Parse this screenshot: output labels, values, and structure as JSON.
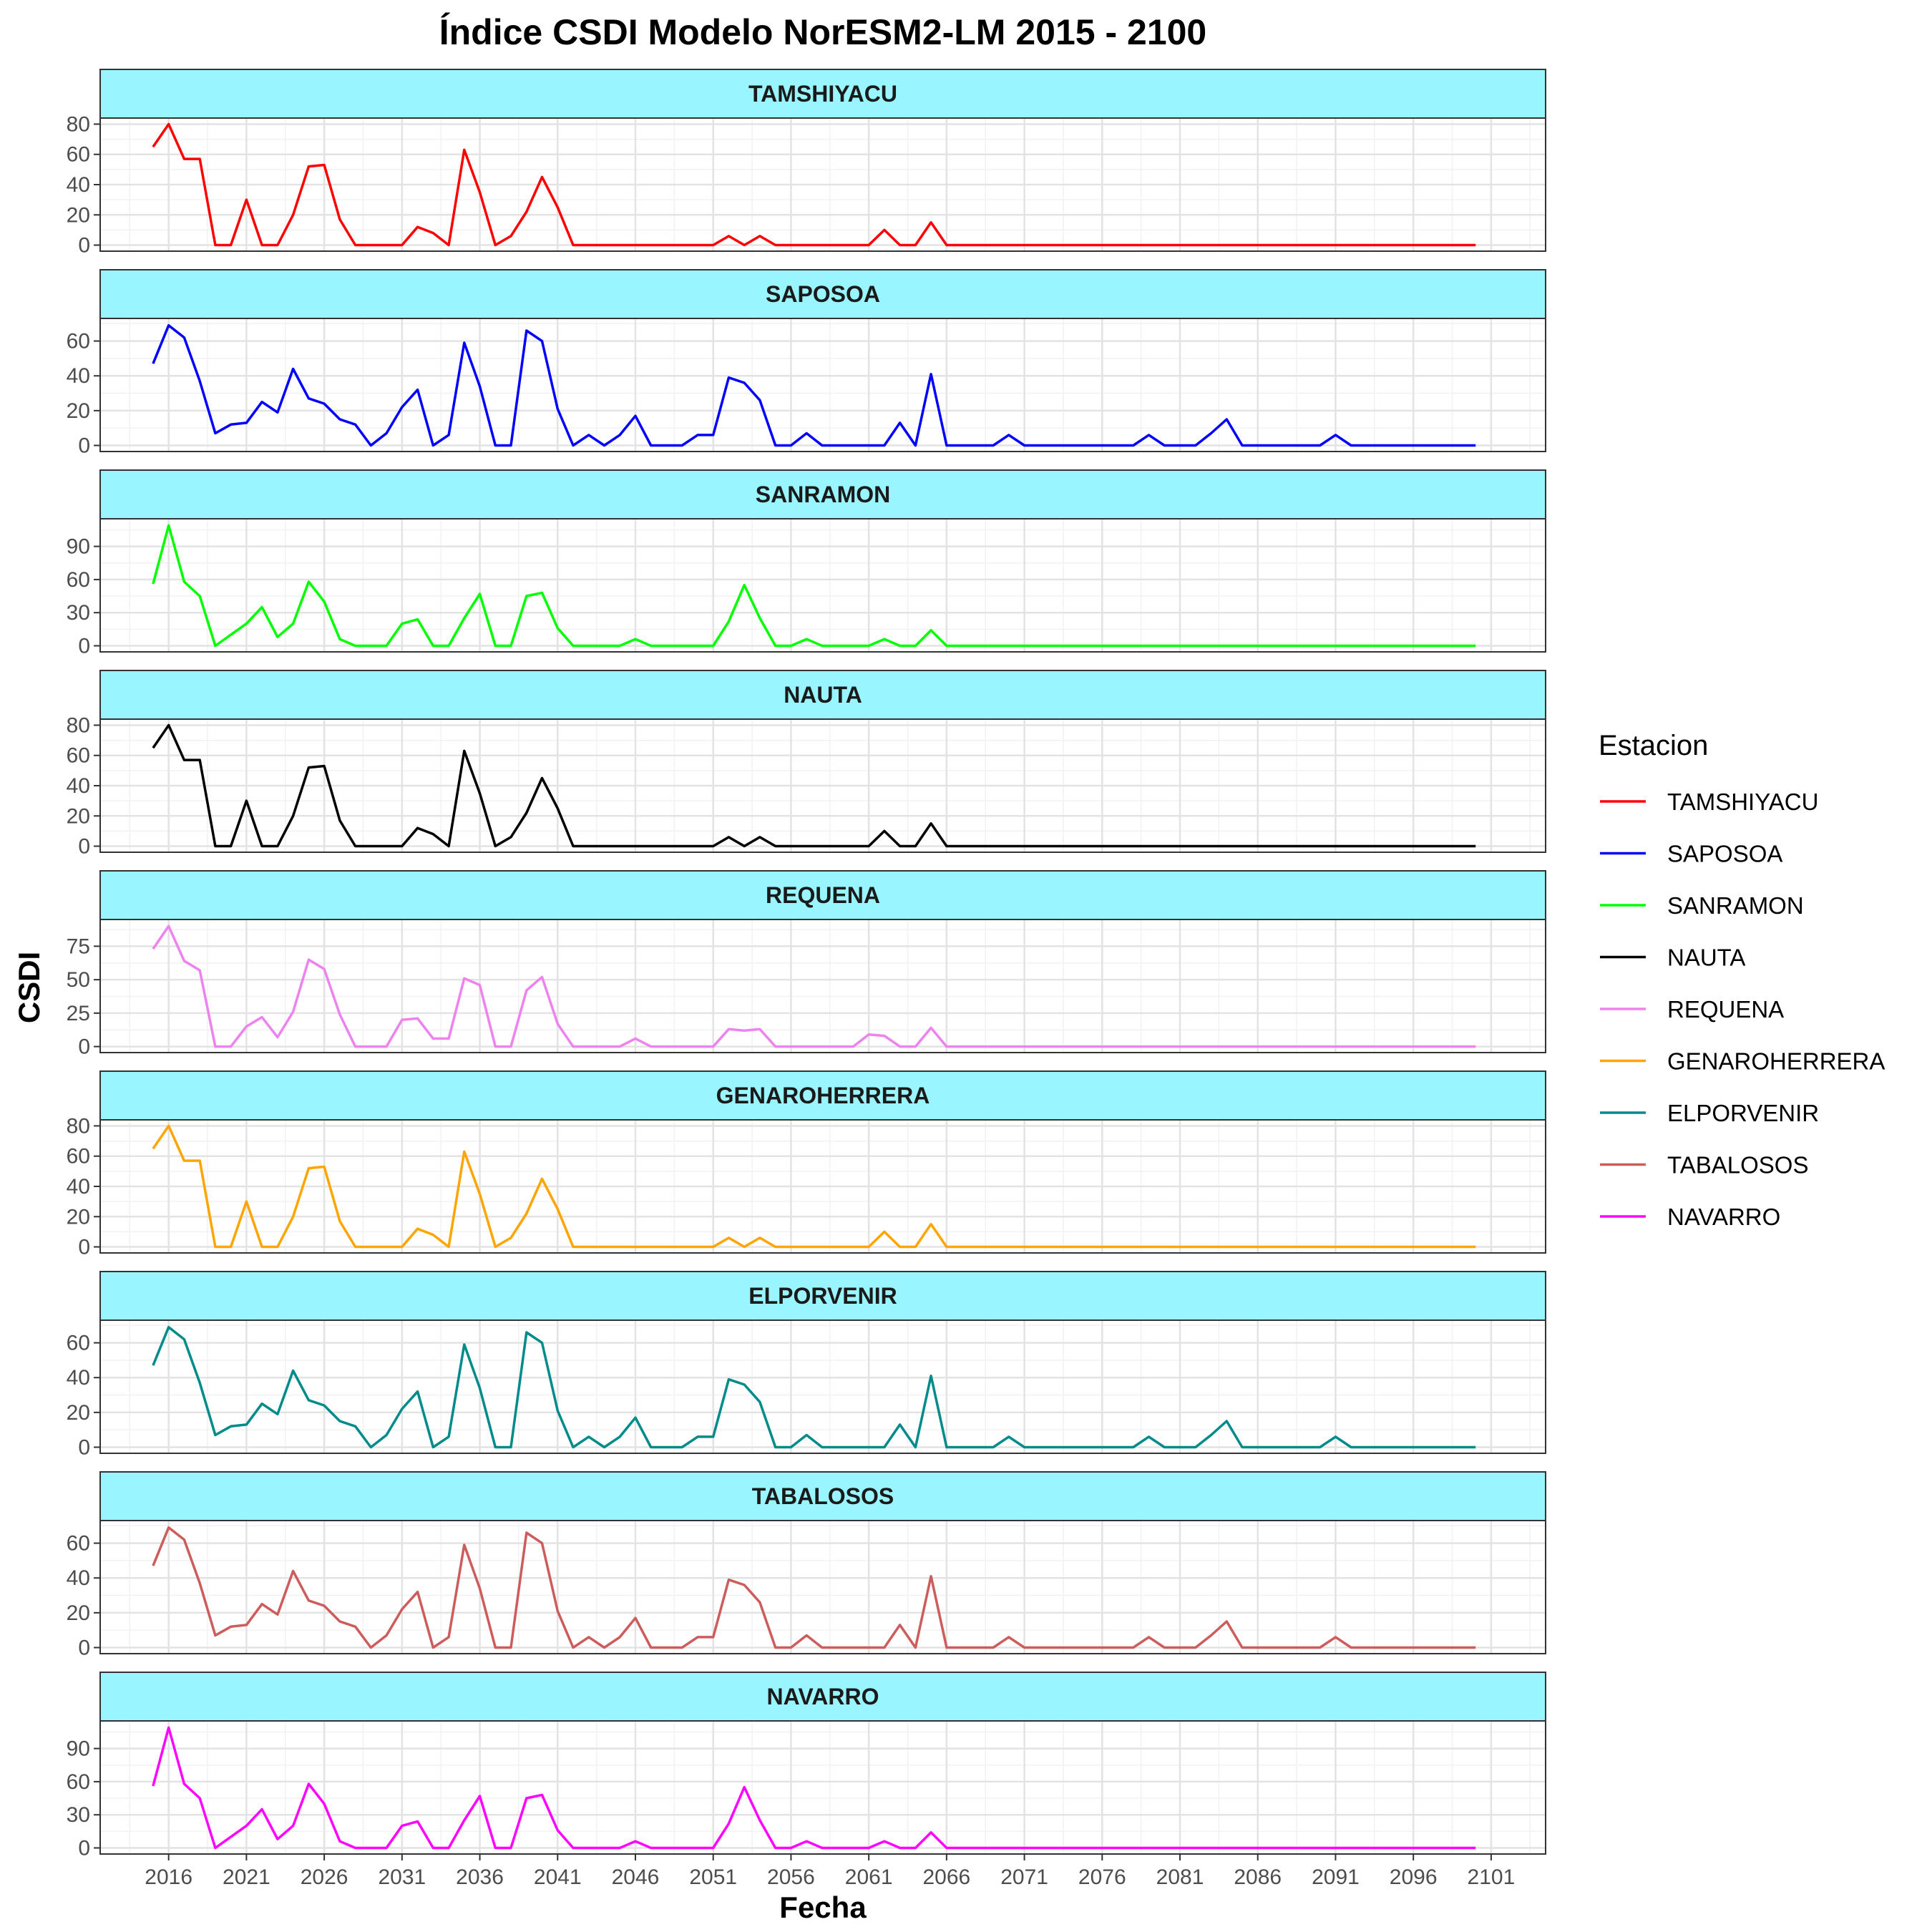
{
  "chart_data": {
    "type": "line",
    "title": "Índice CSDI Modelo NorESM2-LM 2015 - 2100",
    "xlabel": "Fecha",
    "ylabel": "CSDI",
    "x_ticks": [
      "2016",
      "2021",
      "2026",
      "2031",
      "2036",
      "2041",
      "2046",
      "2051",
      "2056",
      "2061",
      "2066",
      "2071",
      "2076",
      "2081",
      "2086",
      "2091",
      "2096",
      "2101"
    ],
    "xlim": [
      2011.6,
      2104.5
    ],
    "grid": true,
    "facet_strip_color": "#99F5FF",
    "legend": {
      "title": "Estacion",
      "position": "right"
    },
    "x": [
      2015,
      2016,
      2017,
      2018,
      2019,
      2020,
      2021,
      2022,
      2023,
      2024,
      2025,
      2026,
      2027,
      2028,
      2029,
      2030,
      2031,
      2032,
      2033,
      2034,
      2035,
      2036,
      2037,
      2038,
      2039,
      2040,
      2041,
      2042,
      2043,
      2044,
      2045,
      2046,
      2047,
      2048,
      2049,
      2050,
      2051,
      2052,
      2053,
      2054,
      2055,
      2056,
      2057,
      2058,
      2059,
      2060,
      2061,
      2062,
      2063,
      2064,
      2065,
      2066,
      2067,
      2068,
      2069,
      2070,
      2071,
      2072,
      2073,
      2074,
      2075,
      2076,
      2077,
      2078,
      2079,
      2080,
      2081,
      2082,
      2083,
      2084,
      2085,
      2086,
      2087,
      2088,
      2089,
      2090,
      2091,
      2092,
      2093,
      2094,
      2095,
      2096,
      2097,
      2098,
      2099,
      2100
    ],
    "series": [
      {
        "name": "TAMSHIYACU",
        "color": "#FF0000",
        "yticks": [
          0,
          20,
          40,
          60,
          80
        ],
        "ylim": [
          -4,
          84
        ],
        "values": [
          65,
          80,
          57,
          57,
          0,
          0,
          30,
          0,
          0,
          20,
          52,
          53,
          17,
          0,
          0,
          0,
          0,
          12,
          8,
          0,
          63,
          35,
          0,
          6,
          22,
          45,
          25,
          0,
          0,
          0,
          0,
          0,
          0,
          0,
          0,
          0,
          0,
          6,
          0,
          6,
          0,
          0,
          0,
          0,
          0,
          0,
          0,
          10,
          0,
          0,
          15,
          0,
          0,
          0,
          0,
          0,
          0,
          0,
          0,
          0,
          0,
          0,
          0,
          0,
          0,
          0,
          0,
          0,
          0,
          0,
          0,
          0,
          0,
          0,
          0,
          0,
          0,
          0,
          0,
          0,
          0,
          0,
          0,
          0,
          0,
          0
        ]
      },
      {
        "name": "SAPOSOA",
        "color": "#0000FF",
        "yticks": [
          0,
          20,
          40,
          60
        ],
        "ylim": [
          -3.5,
          73
        ],
        "values": [
          47,
          69,
          62,
          37,
          7,
          12,
          13,
          25,
          19,
          44,
          27,
          24,
          15,
          12,
          0,
          7,
          22,
          32,
          0,
          6,
          59,
          34,
          0,
          0,
          66,
          60,
          21,
          0,
          6,
          0,
          6,
          17,
          0,
          0,
          0,
          6,
          6,
          39,
          36,
          26,
          0,
          0,
          7,
          0,
          0,
          0,
          0,
          0,
          13,
          0,
          41,
          0,
          0,
          0,
          0,
          6,
          0,
          0,
          0,
          0,
          0,
          0,
          0,
          0,
          6,
          0,
          0,
          0,
          7,
          15,
          0,
          0,
          0,
          0,
          0,
          0,
          6,
          0,
          0,
          0,
          0,
          0,
          0,
          0,
          0,
          0
        ]
      },
      {
        "name": "SANRAMON",
        "color": "#00FF00",
        "yticks": [
          0,
          30,
          60,
          90
        ],
        "ylim": [
          -5.5,
          115
        ],
        "values": [
          56,
          109,
          58,
          45,
          0,
          10,
          20,
          35,
          8,
          20,
          58,
          40,
          6,
          0,
          0,
          0,
          20,
          24,
          0,
          0,
          25,
          47,
          0,
          0,
          45,
          48,
          16,
          0,
          0,
          0,
          0,
          6,
          0,
          0,
          0,
          0,
          0,
          22,
          55,
          25,
          0,
          0,
          6,
          0,
          0,
          0,
          0,
          6,
          0,
          0,
          14,
          0,
          0,
          0,
          0,
          0,
          0,
          0,
          0,
          0,
          0,
          0,
          0,
          0,
          0,
          0,
          0,
          0,
          0,
          0,
          0,
          0,
          0,
          0,
          0,
          0,
          0,
          0,
          0,
          0,
          0,
          0,
          0,
          0,
          0,
          0
        ]
      },
      {
        "name": "NAUTA",
        "color": "#000000",
        "yticks": [
          0,
          20,
          40,
          60,
          80
        ],
        "ylim": [
          -4,
          84
        ],
        "values": [
          65,
          80,
          57,
          57,
          0,
          0,
          30,
          0,
          0,
          20,
          52,
          53,
          17,
          0,
          0,
          0,
          0,
          12,
          8,
          0,
          63,
          35,
          0,
          6,
          22,
          45,
          25,
          0,
          0,
          0,
          0,
          0,
          0,
          0,
          0,
          0,
          0,
          6,
          0,
          6,
          0,
          0,
          0,
          0,
          0,
          0,
          0,
          10,
          0,
          0,
          15,
          0,
          0,
          0,
          0,
          0,
          0,
          0,
          0,
          0,
          0,
          0,
          0,
          0,
          0,
          0,
          0,
          0,
          0,
          0,
          0,
          0,
          0,
          0,
          0,
          0,
          0,
          0,
          0,
          0,
          0,
          0,
          0,
          0,
          0,
          0
        ]
      },
      {
        "name": "REQUENA",
        "color": "#EE82EE",
        "yticks": [
          0,
          25,
          50,
          75
        ],
        "ylim": [
          -4.5,
          95
        ],
        "values": [
          73,
          90,
          64,
          57,
          0,
          0,
          15,
          22,
          7,
          26,
          65,
          58,
          24,
          0,
          0,
          0,
          20,
          21,
          6,
          6,
          51,
          46,
          0,
          0,
          42,
          52,
          17,
          0,
          0,
          0,
          0,
          6,
          0,
          0,
          0,
          0,
          0,
          13,
          12,
          13,
          0,
          0,
          0,
          0,
          0,
          0,
          9,
          8,
          0,
          0,
          14,
          0,
          0,
          0,
          0,
          0,
          0,
          0,
          0,
          0,
          0,
          0,
          0,
          0,
          0,
          0,
          0,
          0,
          0,
          0,
          0,
          0,
          0,
          0,
          0,
          0,
          0,
          0,
          0,
          0,
          0,
          0,
          0,
          0,
          0,
          0
        ]
      },
      {
        "name": "GENAROHERRERA",
        "color": "#FFA500",
        "yticks": [
          0,
          20,
          40,
          60,
          80
        ],
        "ylim": [
          -4,
          84
        ],
        "values": [
          65,
          80,
          57,
          57,
          0,
          0,
          30,
          0,
          0,
          20,
          52,
          53,
          17,
          0,
          0,
          0,
          0,
          12,
          8,
          0,
          63,
          35,
          0,
          6,
          22,
          45,
          25,
          0,
          0,
          0,
          0,
          0,
          0,
          0,
          0,
          0,
          0,
          6,
          0,
          6,
          0,
          0,
          0,
          0,
          0,
          0,
          0,
          10,
          0,
          0,
          15,
          0,
          0,
          0,
          0,
          0,
          0,
          0,
          0,
          0,
          0,
          0,
          0,
          0,
          0,
          0,
          0,
          0,
          0,
          0,
          0,
          0,
          0,
          0,
          0,
          0,
          0,
          0,
          0,
          0,
          0,
          0,
          0,
          0,
          0,
          0
        ]
      },
      {
        "name": "ELPORVENIR",
        "color": "#008B8B",
        "yticks": [
          0,
          20,
          40,
          60
        ],
        "ylim": [
          -3.5,
          73
        ],
        "values": [
          47,
          69,
          62,
          37,
          7,
          12,
          13,
          25,
          19,
          44,
          27,
          24,
          15,
          12,
          0,
          7,
          22,
          32,
          0,
          6,
          59,
          34,
          0,
          0,
          66,
          60,
          21,
          0,
          6,
          0,
          6,
          17,
          0,
          0,
          0,
          6,
          6,
          39,
          36,
          26,
          0,
          0,
          7,
          0,
          0,
          0,
          0,
          0,
          13,
          0,
          41,
          0,
          0,
          0,
          0,
          6,
          0,
          0,
          0,
          0,
          0,
          0,
          0,
          0,
          6,
          0,
          0,
          0,
          7,
          15,
          0,
          0,
          0,
          0,
          0,
          0,
          6,
          0,
          0,
          0,
          0,
          0,
          0,
          0,
          0,
          0
        ]
      },
      {
        "name": "TABALOSOS",
        "color": "#CD5C5C",
        "yticks": [
          0,
          20,
          40,
          60
        ],
        "ylim": [
          -3.5,
          73
        ],
        "values": [
          47,
          69,
          62,
          37,
          7,
          12,
          13,
          25,
          19,
          44,
          27,
          24,
          15,
          12,
          0,
          7,
          22,
          32,
          0,
          6,
          59,
          34,
          0,
          0,
          66,
          60,
          21,
          0,
          6,
          0,
          6,
          17,
          0,
          0,
          0,
          6,
          6,
          39,
          36,
          26,
          0,
          0,
          7,
          0,
          0,
          0,
          0,
          0,
          13,
          0,
          41,
          0,
          0,
          0,
          0,
          6,
          0,
          0,
          0,
          0,
          0,
          0,
          0,
          0,
          6,
          0,
          0,
          0,
          7,
          15,
          0,
          0,
          0,
          0,
          0,
          0,
          6,
          0,
          0,
          0,
          0,
          0,
          0,
          0,
          0,
          0
        ]
      },
      {
        "name": "NAVARRO",
        "color": "#FF00FF",
        "yticks": [
          0,
          30,
          60,
          90
        ],
        "ylim": [
          -5.5,
          115
        ],
        "values": [
          56,
          109,
          58,
          45,
          0,
          10,
          20,
          35,
          8,
          20,
          58,
          40,
          6,
          0,
          0,
          0,
          20,
          24,
          0,
          0,
          25,
          47,
          0,
          0,
          45,
          48,
          16,
          0,
          0,
          0,
          0,
          6,
          0,
          0,
          0,
          0,
          0,
          22,
          55,
          25,
          0,
          0,
          6,
          0,
          0,
          0,
          0,
          6,
          0,
          0,
          14,
          0,
          0,
          0,
          0,
          0,
          0,
          0,
          0,
          0,
          0,
          0,
          0,
          0,
          0,
          0,
          0,
          0,
          0,
          0,
          0,
          0,
          0,
          0,
          0,
          0,
          0,
          0,
          0,
          0,
          0,
          0,
          0,
          0,
          0,
          0
        ]
      }
    ]
  }
}
